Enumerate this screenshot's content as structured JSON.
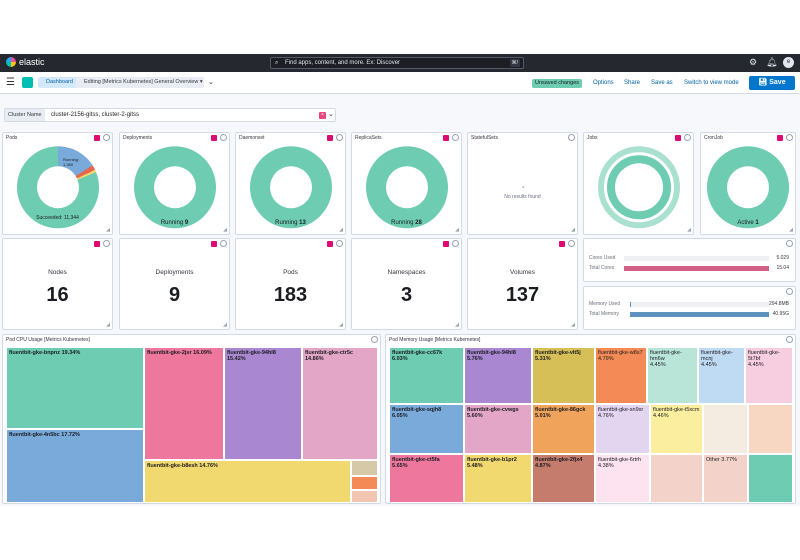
{
  "topbar": {
    "brand": "elastic",
    "search_placeholder": "Find apps, content, and more. Ex: Discover",
    "search_shortcut": "⌘/"
  },
  "nav": {
    "breadcrumb_root": "Dashboard",
    "breadcrumb_current": "Editing [Metrics Kubernetes] General Overview ▾",
    "unsaved_badge": "Unsaved changes",
    "links": [
      "Options",
      "Share",
      "Save as",
      "Switch to view mode"
    ],
    "save_label": "Save"
  },
  "filter": {
    "label": "Cluster Name",
    "value": "cluster-2156-gitss, cluster-2-gitss",
    "clear": "×"
  },
  "donuts": {
    "pods": {
      "title": "Pods",
      "label": "Succeeded: 11,344",
      "small_lines": [
        "Running:",
        "1,389"
      ]
    },
    "deployments": {
      "title": "Deployments",
      "status": "Running",
      "count": "9"
    },
    "daemonset": {
      "title": "Daemonset",
      "status": "Running",
      "count": "13"
    },
    "replicasets": {
      "title": "ReplicaSets",
      "status": "Running",
      "count": "28"
    },
    "statefulsets": {
      "title": "StatefulSets",
      "empty": "No results found"
    },
    "jobs": {
      "title": "Jobs"
    },
    "cronjob": {
      "title": "CronJob",
      "status": "Active",
      "count": "1"
    }
  },
  "metrics": [
    {
      "label": "Nodes",
      "value": "16"
    },
    {
      "label": "Deployments",
      "value": "9"
    },
    {
      "label": "Pods",
      "value": "183"
    },
    {
      "label": "Namespaces",
      "value": "3"
    },
    {
      "label": "Volumes",
      "value": "137"
    }
  ],
  "cores": {
    "used_label": "Cores Used",
    "total_label": "Total Cores",
    "used_value": "5.029",
    "total_value": "15.04",
    "used_ratio": 0.334,
    "total_ratio": 1,
    "used_color": "#eef0f4",
    "total_color": "#d36086"
  },
  "memory": {
    "used_label": "Memory Used",
    "total_label": "Total Memory",
    "used_value": "294.8MB",
    "total_value": "40.95G",
    "used_ratio": 0.01,
    "total_ratio": 1,
    "total_color": "#6092c0"
  },
  "cpu_treemap": {
    "title": "Pod CPU Usage [Metrics Kubernetes]",
    "cells": [
      {
        "name": "fluentbit-gke-bnpnz",
        "pct": "19.34%",
        "color": "#6dccb1"
      },
      {
        "name": "fluentbit-gke-4n5bc",
        "pct": "17.72%",
        "color": "#79aad9"
      },
      {
        "name": "fluentbit-gke-2jsr",
        "pct": "16.09%",
        "color": "#ee789d"
      },
      {
        "name": "fluentbit-gke-94hl8",
        "pct": "15.42%",
        "color": "#a987d1"
      },
      {
        "name": "fluentbit-gke-ctr5c",
        "pct": "14.86%",
        "color": "#e4a6c7"
      },
      {
        "name": "fluentbit-gke-b8esh",
        "pct": "14.76%",
        "color": "#f1d86f"
      }
    ]
  },
  "mem_treemap": {
    "title": "Pod Memory Usage [Metrics Kubernetes]",
    "cells": [
      {
        "name": "fluentbit-gke-cc67k",
        "pct": "6.03%",
        "color": "#6dccb1"
      },
      {
        "name": "fluentbit-gke-94hl8",
        "pct": "5.76%",
        "color": "#a987d1"
      },
      {
        "name": "fluentbit-gke-vlt5j",
        "pct": "5.31%",
        "color": "#d6bf57"
      },
      {
        "name": "fluentbit-gke-w8s7",
        "pct": "4.79%",
        "color": "#f48a55"
      },
      {
        "name": "fluentbit-gke-hm6w",
        "pct": "4.45%",
        "color": "#b9e5d8"
      },
      {
        "name": "fluentbit-gke-mcnj",
        "pct": "4.45%",
        "color": "#bfdbf3"
      },
      {
        "name": "fluentbit-gke-5t7bf",
        "pct": "4.45%",
        "color": "#f7cde0"
      },
      {
        "name": "fluentbit-gke-sqjh8",
        "pct": "6.05%",
        "color": "#79aad9"
      },
      {
        "name": "fluentbit-gke-cvwgs",
        "pct": "5.60%",
        "color": "#e4a6c7"
      },
      {
        "name": "fluentbit-gke-86gck",
        "pct": "5.01%",
        "color": "#f0a35b"
      },
      {
        "name": "fluentbit-gke-sn9xr",
        "pct": "4.76%",
        "color": "#e3d5f0"
      },
      {
        "name": "fluentbit-gke-t5xcm",
        "pct": "4.46%",
        "color": "#fbef9f"
      },
      {
        "name": "fluentbit-gke-ct5fa",
        "pct": "5.65%",
        "color": "#ee789d"
      },
      {
        "name": "fluentbit-gke-b1pr2",
        "pct": "5.48%",
        "color": "#f1d86f"
      },
      {
        "name": "fluentbit-gke-2fjx4",
        "pct": "4.87%",
        "color": "#c57c6c"
      },
      {
        "name": "fluentbit-gke-6rtrh",
        "pct": "4.38%",
        "color": "#fde2ef"
      },
      {
        "name": "Other",
        "pct": "3.77%",
        "color": "#f3d3c9"
      }
    ]
  }
}
